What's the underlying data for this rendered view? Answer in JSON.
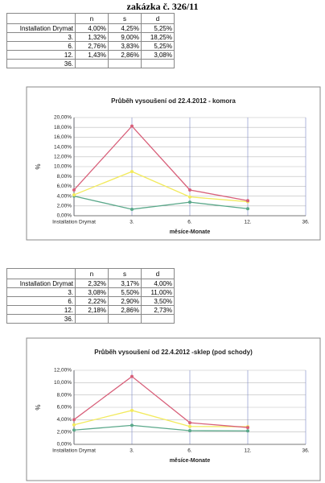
{
  "title": "zakázka č. 326/11",
  "tables": [
    {
      "headers": [
        "n",
        "s",
        "d"
      ],
      "rows": [
        [
          "Installation Drymat",
          "4,00%",
          "4,25%",
          "5,25%"
        ],
        [
          "3.",
          "1,32%",
          "9,00%",
          "18,25%"
        ],
        [
          "6.",
          "2,76%",
          "3,83%",
          "5,25%"
        ],
        [
          "12.",
          "1,43%",
          "2,86%",
          "3,08%"
        ],
        [
          "36."
        ]
      ]
    },
    {
      "headers": [
        "n",
        "s",
        "d"
      ],
      "rows": [
        [
          "Installation Drymat",
          "2,32%",
          "3,17%",
          "4,00%"
        ],
        [
          "3.",
          "3,08%",
          "5,50%",
          "11,00%"
        ],
        [
          "6.",
          "2,22%",
          "2,90%",
          "3,50%"
        ],
        [
          "12.",
          "2,18%",
          "2,86%",
          "2,73%"
        ],
        [
          "36."
        ]
      ]
    }
  ],
  "chart_data": [
    {
      "type": "line",
      "title": "Průběh vysoušení od 22.4.2012 - komora",
      "ylabel": "%",
      "xlabel": "měsíce-Monate",
      "categories": [
        "Installation Drymat",
        "3.",
        "6.",
        "12.",
        "36."
      ],
      "series": [
        {
          "color": "#5aa88a",
          "values": [
            4.0,
            1.32,
            2.76,
            1.43,
            null
          ]
        },
        {
          "color": "#f2ea5c",
          "values": [
            4.25,
            9.0,
            3.83,
            2.86,
            null
          ]
        },
        {
          "color": "#d8607a",
          "values": [
            5.25,
            18.25,
            5.25,
            3.08,
            null
          ]
        }
      ],
      "ylim": [
        0,
        20
      ],
      "yticks": [
        {
          "value": 0,
          "label": "0,00%"
        },
        {
          "value": 2,
          "label": "2,00%"
        },
        {
          "value": 4,
          "label": "4,00%"
        },
        {
          "value": 6,
          "label": "6,00%"
        },
        {
          "value": 8,
          "label": "8,00%"
        },
        {
          "value": 10,
          "label": "10,00%"
        },
        {
          "value": 12,
          "label": "12,00%"
        },
        {
          "value": 14,
          "label": "14,00%"
        },
        {
          "value": 16,
          "label": "16,00%"
        },
        {
          "value": 18,
          "label": "18,00%"
        },
        {
          "value": 20,
          "label": "20,00%"
        }
      ],
      "grid": true
    },
    {
      "type": "line",
      "title": "Průběh vysoušení od 22.4.2012 -sklep (pod schody)",
      "ylabel": "%",
      "xlabel": "měsíce-Monate",
      "categories": [
        "Installation Drymat",
        "3.",
        "6.",
        "12.",
        "36."
      ],
      "series": [
        {
          "color": "#5aa88a",
          "values": [
            2.32,
            3.08,
            2.22,
            2.18,
            null
          ]
        },
        {
          "color": "#f2ea5c",
          "values": [
            3.17,
            5.5,
            2.9,
            2.86,
            null
          ]
        },
        {
          "color": "#d8607a",
          "values": [
            4.0,
            11.0,
            3.5,
            2.73,
            null
          ]
        }
      ],
      "ylim": [
        0,
        12
      ],
      "yticks": [
        {
          "value": 0,
          "label": "0,00%"
        },
        {
          "value": 2,
          "label": "2,00%"
        },
        {
          "value": 4,
          "label": "4,00%"
        },
        {
          "value": 6,
          "label": "6,00%"
        },
        {
          "value": 8,
          "label": "8,00%"
        },
        {
          "value": 10,
          "label": "10,00%"
        },
        {
          "value": 12,
          "label": "12,00%"
        }
      ],
      "grid": true
    }
  ]
}
